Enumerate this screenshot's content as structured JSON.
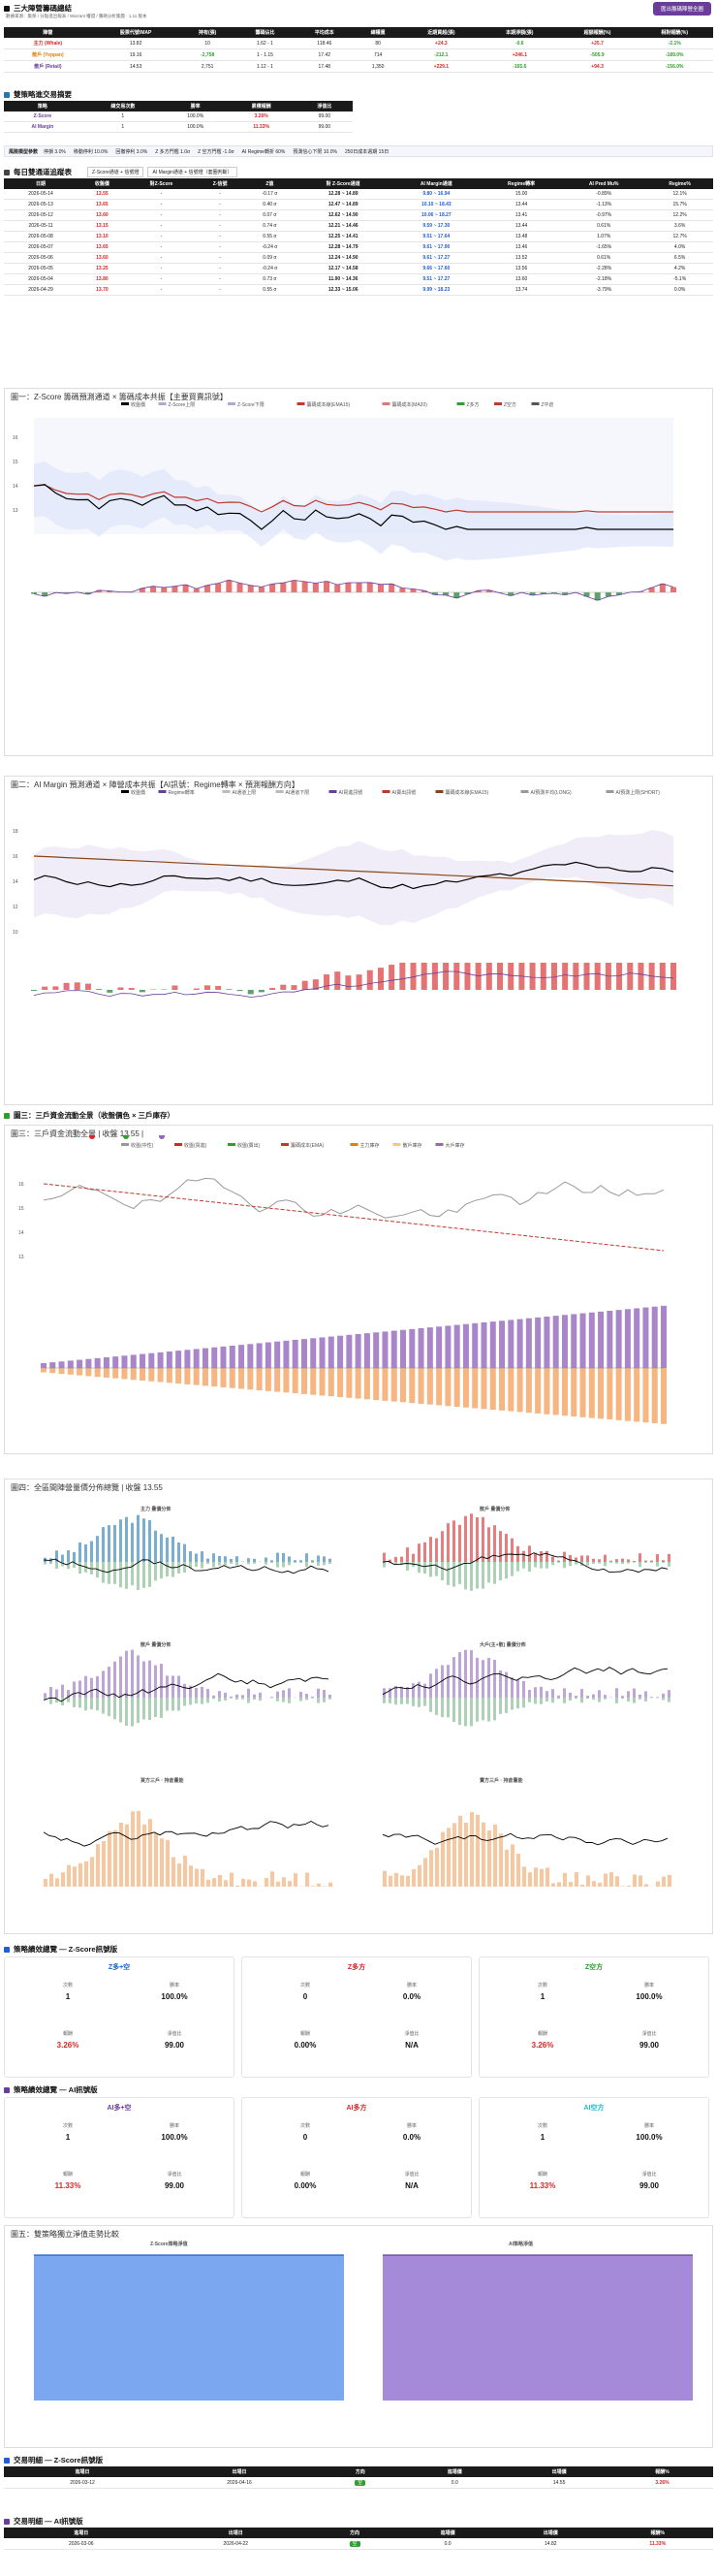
{
  "header": {
    "title": "三大陣營籌碼總結",
    "subtitle": "數據來源：集保 / 分點進出報表 / Warrant 權證 / 籌碼分析集團 · 1.11 版本",
    "button": "匯出籌碼陣營全圖"
  },
  "summary": {
    "columns": [
      "陣營",
      "股票代號/MAP",
      "持有(張)",
      "籌碼佔比",
      "平均成本",
      "總權重",
      "近期買超(張)",
      "本期淨額(張)",
      "超額報酬(%)",
      "相對報酬(%)"
    ],
    "rows": [
      [
        "主力 (Whale)",
        "13.82",
        "10",
        "1.62 - 1",
        "118.46",
        "80",
        "+24.3",
        "-0.6",
        "+25.7",
        "-2.1%"
      ],
      [
        "散戶 (Yeppan)",
        "19.16",
        "-2,758",
        "1 - 1.15",
        "17.42",
        "714",
        "-212.1",
        "+246.1",
        "-505.9",
        "-189.0%"
      ],
      [
        "散戶 (Retail)",
        "14.53",
        "2,751",
        "1.12 - 1",
        "17.48",
        "1,350",
        "+229.1",
        "-165.6",
        "+94.3",
        "-156.0%"
      ]
    ]
  },
  "sig": {
    "title": "雙策略進交易摘要",
    "columns": [
      "策略",
      "總交易次數",
      "勝率",
      "累積報酬",
      "淨值比"
    ],
    "rows": [
      [
        "Z-Score",
        "1",
        "100.0%",
        "3.26%",
        "99.00"
      ],
      [
        "AI Margin",
        "1",
        "100.0%",
        "11.33%",
        "99.00"
      ]
    ]
  },
  "params": {
    "label": "風險模型參數",
    "items": [
      "停損 3.0%",
      "移動停利 10.0%",
      "回撤停利 3.0%",
      "Z 多方門檻 1.0σ",
      "Z 空方門檻 -1.0σ",
      "AI Regime轉折 60%",
      "預測信心下限 10.0%",
      "250日成本週期 15日"
    ]
  },
  "daily": {
    "title": "每日雙通道追蹤表",
    "tabs": [
      "Z-Score通道 + 信號燈",
      "AI Margin通道 + 信號燈（套圈判斷）"
    ],
    "columns": [
      "日期",
      "收盤價",
      "對Z-Score",
      "Z-信號",
      "Z值",
      "對 Z-Score通道",
      "AI Margin通道",
      "Regime轉率",
      "AI Pred Mu%",
      "Regime%"
    ],
    "rows": [
      [
        "2026-05-14",
        "13.55",
        "-",
        "-",
        "-0.17 σ",
        "12.28 ~ 14.89",
        "9.80 ~ 16.94",
        "15.00",
        "-0.89%",
        "12.1%"
      ],
      [
        "2026-05-13",
        "13.65",
        "-",
        "-",
        "0.40 σ",
        "12.47 ~ 14.89",
        "10.10 ~ 18.43",
        "13.44",
        "-1.13%",
        "15.7%"
      ],
      [
        "2026-05-12",
        "13.60",
        "-",
        "-",
        "0.07 σ",
        "12.62 ~ 14.90",
        "10.06 ~ 18.27",
        "13.41",
        "-0.97%",
        "12.2%"
      ],
      [
        "2026-05-11",
        "13.15",
        "-",
        "-",
        "0.74 σ",
        "12.21 ~ 14.46",
        "9.59 ~ 17.30",
        "13.44",
        "0.61%",
        "3.6%"
      ],
      [
        "2026-05-08",
        "13.10",
        "-",
        "-",
        "0.55 σ",
        "12.25 ~ 14.41",
        "9.51 ~ 17.64",
        "13.48",
        "1.07%",
        "12.7%"
      ],
      [
        "2026-05-07",
        "13.65",
        "-",
        "-",
        "-0.24 σ",
        "12.28 ~ 14.79",
        "9.61 ~ 17.90",
        "13.46",
        "-1.65%",
        "4.0%"
      ],
      [
        "2026-05-06",
        "13.60",
        "-",
        "-",
        "0.09 σ",
        "12.24 ~ 14.90",
        "9.61 ~ 17.27",
        "13.52",
        "0.61%",
        "6.5%"
      ],
      [
        "2026-05-05",
        "13.25",
        "-",
        "-",
        "-0.24 σ",
        "12.17 ~ 14.58",
        "9.66 ~ 17.60",
        "13.56",
        "-2.28%",
        "4.2%"
      ],
      [
        "2026-05-04",
        "13.80",
        "-",
        "-",
        "0.73 σ",
        "11.90 ~ 14.36",
        "9.51 ~ 17.27",
        "13.60",
        "-2.18%",
        "-5.1%"
      ],
      [
        "2026-04-29",
        "13.70",
        "-",
        "-",
        "0.55 σ",
        "12.33 ~ 15.06",
        "9.99 ~ 18.23",
        "13.74",
        "-3.79%",
        "0.0%"
      ]
    ]
  },
  "chart1": {
    "title": "圖一：Z-Score 籌碼預測通道 × 籌碼成本共振【主要買賣訊號】",
    "legend": [
      "收盤價",
      "Z-Score上限",
      "Z-Score下限",
      "籌碼成本線(EMA15)",
      "籌碼成本(MA20)",
      "Z多方",
      "Z空方",
      "Z平倉"
    ]
  },
  "chart2": {
    "title": "圖二：AI Margin 預測通道 × 陣營成本共振【AI訊號：Regime轉率 × 預測報酬方向】",
    "legend": [
      "收盤價",
      "Regime轉率",
      "AI通道上限",
      "AI通道下限",
      "AI買進訊號",
      "AI賣出訊號",
      "籌碼成本線(EMA15)",
      "AI預測平均(LONG)",
      "AI預測上限(SHORT)"
    ]
  },
  "sec3": {
    "title": "圖三：三戶資金流動全景（收盤價色 × 三戶庫存）"
  },
  "chart3": {
    "title": "圖三：三戶資金流動全景 | 收盤 13.55 |",
    "tags": [
      "買進段",
      "賣出段",
      "中性段"
    ],
    "legend": [
      "收盤(中性)",
      "收盤(買進)",
      "收盤(賣出)",
      "籌碼成本(EMA)",
      "主力庫存",
      "散戶庫存",
      "大戶庫存"
    ]
  },
  "chart4": {
    "title": "圖四：全區間陣營量價分佈總覽 | 收盤 13.55",
    "panels": [
      "主力 量價分佈",
      "散戶 量價分佈",
      "散戶 量價分佈",
      "大戶(主+散) 量價分佈",
      "買方三戶 · 持倉量能",
      "賣方三戶 · 持倉量能"
    ]
  },
  "z_summary": {
    "title": "策略績效總覽 — Z-Score訊號版",
    "cards": [
      {
        "name": "Z多+空",
        "color": "#1f5fd6",
        "count": "1",
        "win": "100.0%",
        "ret": "3.26%",
        "nav": "99.00"
      },
      {
        "name": "Z多方",
        "color": "#d62728",
        "count": "0",
        "win": "0.0%",
        "ret": "0.00%",
        "nav": "N/A"
      },
      {
        "name": "Z空方",
        "color": "#2ca02c",
        "count": "1",
        "win": "100.0%",
        "ret": "3.26%",
        "nav": "99.00"
      }
    ]
  },
  "ai_summary": {
    "title": "策略績效總覽 — AI訊號版",
    "cards": [
      {
        "name": "AI多+空",
        "color": "#6a3d9a",
        "count": "1",
        "win": "100.0%",
        "ret": "11.33%",
        "nav": "99.00"
      },
      {
        "name": "AI多方",
        "color": "#d62728",
        "count": "0",
        "win": "0.0%",
        "ret": "0.00%",
        "nav": "N/A"
      },
      {
        "name": "AI空方",
        "color": "#17becf",
        "count": "1",
        "win": "100.0%",
        "ret": "11.33%",
        "nav": "99.00"
      }
    ]
  },
  "card_labels": {
    "count": "次數",
    "win": "勝率",
    "ret": "報酬",
    "nav": "淨值比"
  },
  "chart5": {
    "title": "圖五：雙策略獨立淨值走勢比較",
    "left": "Z-Score策略淨值",
    "right": "AI策略淨值"
  },
  "trades_z": {
    "title": "交易明細 — Z-Score訊號版",
    "columns": [
      "進場日",
      "出場日",
      "方向",
      "進場價",
      "出場價",
      "報酬%"
    ],
    "rows": [
      [
        "2026-03-12",
        "2026-04-16",
        "空",
        "0.0",
        "14.55",
        "3.26%"
      ]
    ]
  },
  "trades_ai": {
    "title": "交易明細 — AI訊號版",
    "columns": [
      "進場日",
      "出場日",
      "方向",
      "進場價",
      "出場價",
      "報酬%"
    ],
    "rows": [
      [
        "2026-03-06",
        "2026-04-22",
        "空",
        "0.0",
        "14.82",
        "11.33%"
      ]
    ]
  }
}
